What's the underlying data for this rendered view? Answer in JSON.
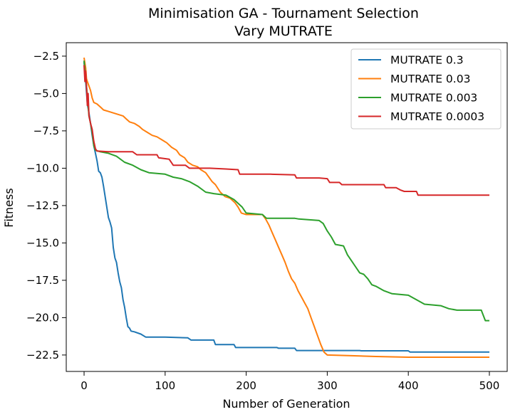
{
  "chart_data": {
    "type": "line",
    "title": "Minimisation GA - Tournament Selection",
    "subtitle": "Vary MUTRATE",
    "xlabel": "Number of Generation",
    "ylabel": "Fitness",
    "xlim": [
      -22,
      522
    ],
    "ylim": [
      -23.6,
      -1.6
    ],
    "xticks": [
      0,
      100,
      200,
      300,
      400,
      500
    ],
    "yticks": [
      -2.5,
      -5.0,
      -7.5,
      -10.0,
      -12.5,
      -15.0,
      -17.5,
      -20.0,
      -22.5
    ],
    "xtick_labels": [
      "0",
      "100",
      "200",
      "300",
      "400",
      "500"
    ],
    "ytick_labels": [
      "−2.5",
      "−5.0",
      "−7.5",
      "−10.0",
      "−12.5",
      "−15.0",
      "−17.5",
      "−20.0",
      "−22.5"
    ],
    "grid": false,
    "legend_position": "top-right",
    "series": [
      {
        "name": "MUTRATE 0.3",
        "color": "#1f77b4",
        "points": [
          [
            0,
            -2.9
          ],
          [
            2,
            -4.2
          ],
          [
            4,
            -5.7
          ],
          [
            6,
            -6.3
          ],
          [
            8,
            -7.0
          ],
          [
            10,
            -7.8
          ],
          [
            12,
            -8.5
          ],
          [
            14,
            -9.0
          ],
          [
            16,
            -9.5
          ],
          [
            18,
            -10.2
          ],
          [
            20,
            -10.3
          ],
          [
            22,
            -10.6
          ],
          [
            24,
            -11.2
          ],
          [
            26,
            -11.9
          ],
          [
            28,
            -12.6
          ],
          [
            30,
            -13.3
          ],
          [
            32,
            -13.6
          ],
          [
            34,
            -14.0
          ],
          [
            36,
            -15.3
          ],
          [
            38,
            -16.0
          ],
          [
            40,
            -16.3
          ],
          [
            42,
            -17.0
          ],
          [
            44,
            -17.6
          ],
          [
            46,
            -18.0
          ],
          [
            48,
            -18.8
          ],
          [
            50,
            -19.3
          ],
          [
            52,
            -20.0
          ],
          [
            54,
            -20.6
          ],
          [
            56,
            -20.7
          ],
          [
            58,
            -20.9
          ],
          [
            62,
            -20.95
          ],
          [
            70,
            -21.1
          ],
          [
            76,
            -21.3
          ],
          [
            100,
            -21.3
          ],
          [
            128,
            -21.35
          ],
          [
            132,
            -21.5
          ],
          [
            160,
            -21.5
          ],
          [
            162,
            -21.8
          ],
          [
            185,
            -21.8
          ],
          [
            187,
            -22.0
          ],
          [
            238,
            -22.0
          ],
          [
            240,
            -22.05
          ],
          [
            260,
            -22.05
          ],
          [
            262,
            -22.2
          ],
          [
            340,
            -22.2
          ],
          [
            342,
            -22.22
          ],
          [
            400,
            -22.22
          ],
          [
            402,
            -22.3
          ],
          [
            500,
            -22.3
          ]
        ]
      },
      {
        "name": "MUTRATE 0.03",
        "color": "#ff7f0e",
        "points": [
          [
            0,
            -2.6
          ],
          [
            2,
            -3.3
          ],
          [
            3,
            -4.0
          ],
          [
            4,
            -4.2
          ],
          [
            6,
            -4.5
          ],
          [
            8,
            -4.8
          ],
          [
            10,
            -5.3
          ],
          [
            12,
            -5.6
          ],
          [
            16,
            -5.7
          ],
          [
            20,
            -5.9
          ],
          [
            24,
            -6.1
          ],
          [
            30,
            -6.2
          ],
          [
            36,
            -6.3
          ],
          [
            42,
            -6.4
          ],
          [
            48,
            -6.5
          ],
          [
            52,
            -6.7
          ],
          [
            56,
            -6.9
          ],
          [
            62,
            -7.0
          ],
          [
            68,
            -7.2
          ],
          [
            72,
            -7.4
          ],
          [
            78,
            -7.6
          ],
          [
            84,
            -7.8
          ],
          [
            90,
            -7.9
          ],
          [
            96,
            -8.1
          ],
          [
            102,
            -8.3
          ],
          [
            108,
            -8.6
          ],
          [
            114,
            -8.8
          ],
          [
            118,
            -9.1
          ],
          [
            124,
            -9.3
          ],
          [
            128,
            -9.6
          ],
          [
            134,
            -9.8
          ],
          [
            140,
            -9.9
          ],
          [
            144,
            -10.1
          ],
          [
            150,
            -10.3
          ],
          [
            154,
            -10.6
          ],
          [
            158,
            -10.9
          ],
          [
            162,
            -11.1
          ],
          [
            168,
            -11.6
          ],
          [
            174,
            -11.9
          ],
          [
            180,
            -12.0
          ],
          [
            186,
            -12.3
          ],
          [
            190,
            -12.6
          ],
          [
            194,
            -13.0
          ],
          [
            200,
            -13.1
          ],
          [
            220,
            -13.1
          ],
          [
            224,
            -13.4
          ],
          [
            228,
            -13.8
          ],
          [
            232,
            -14.3
          ],
          [
            236,
            -14.8
          ],
          [
            240,
            -15.3
          ],
          [
            244,
            -15.8
          ],
          [
            248,
            -16.3
          ],
          [
            252,
            -16.9
          ],
          [
            256,
            -17.4
          ],
          [
            260,
            -17.7
          ],
          [
            264,
            -18.2
          ],
          [
            268,
            -18.6
          ],
          [
            272,
            -19.0
          ],
          [
            276,
            -19.4
          ],
          [
            280,
            -20.0
          ],
          [
            284,
            -20.6
          ],
          [
            288,
            -21.2
          ],
          [
            292,
            -21.8
          ],
          [
            296,
            -22.3
          ],
          [
            300,
            -22.5
          ],
          [
            330,
            -22.55
          ],
          [
            360,
            -22.6
          ],
          [
            400,
            -22.65
          ],
          [
            500,
            -22.65
          ]
        ]
      },
      {
        "name": "MUTRATE 0.003",
        "color": "#2ca02c",
        "points": [
          [
            0,
            -2.8
          ],
          [
            2,
            -4.0
          ],
          [
            3,
            -4.5
          ],
          [
            4,
            -5.2
          ],
          [
            6,
            -6.5
          ],
          [
            8,
            -7.0
          ],
          [
            10,
            -7.6
          ],
          [
            12,
            -8.5
          ],
          [
            14,
            -8.8
          ],
          [
            20,
            -8.9
          ],
          [
            30,
            -9.0
          ],
          [
            40,
            -9.2
          ],
          [
            50,
            -9.6
          ],
          [
            60,
            -9.8
          ],
          [
            70,
            -10.1
          ],
          [
            80,
            -10.3
          ],
          [
            100,
            -10.4
          ],
          [
            110,
            -10.6
          ],
          [
            120,
            -10.7
          ],
          [
            130,
            -10.9
          ],
          [
            140,
            -11.2
          ],
          [
            150,
            -11.6
          ],
          [
            160,
            -11.7
          ],
          [
            175,
            -11.8
          ],
          [
            185,
            -12.1
          ],
          [
            195,
            -12.6
          ],
          [
            200,
            -13.0
          ],
          [
            220,
            -13.1
          ],
          [
            225,
            -13.35
          ],
          [
            260,
            -13.35
          ],
          [
            265,
            -13.4
          ],
          [
            290,
            -13.5
          ],
          [
            295,
            -13.7
          ],
          [
            300,
            -14.2
          ],
          [
            305,
            -14.6
          ],
          [
            310,
            -15.1
          ],
          [
            320,
            -15.2
          ],
          [
            325,
            -15.8
          ],
          [
            330,
            -16.2
          ],
          [
            335,
            -16.6
          ],
          [
            340,
            -17.0
          ],
          [
            345,
            -17.1
          ],
          [
            350,
            -17.4
          ],
          [
            355,
            -17.8
          ],
          [
            360,
            -17.9
          ],
          [
            370,
            -18.2
          ],
          [
            380,
            -18.4
          ],
          [
            400,
            -18.5
          ],
          [
            420,
            -19.1
          ],
          [
            440,
            -19.2
          ],
          [
            450,
            -19.4
          ],
          [
            460,
            -19.5
          ],
          [
            490,
            -19.5
          ],
          [
            495,
            -20.2
          ],
          [
            500,
            -20.2
          ]
        ]
      },
      {
        "name": "MUTRATE 0.0003",
        "color": "#d62728",
        "points": [
          [
            0,
            -3.1
          ],
          [
            1,
            -4.2
          ],
          [
            2,
            -3.5
          ],
          [
            3,
            -4.5
          ],
          [
            4,
            -5.8
          ],
          [
            5,
            -5.0
          ],
          [
            6,
            -6.5
          ],
          [
            8,
            -7.0
          ],
          [
            10,
            -7.4
          ],
          [
            12,
            -8.2
          ],
          [
            14,
            -8.7
          ],
          [
            16,
            -8.85
          ],
          [
            30,
            -8.9
          ],
          [
            60,
            -8.9
          ],
          [
            65,
            -9.1
          ],
          [
            90,
            -9.1
          ],
          [
            92,
            -9.3
          ],
          [
            105,
            -9.4
          ],
          [
            110,
            -9.8
          ],
          [
            125,
            -9.8
          ],
          [
            130,
            -10.0
          ],
          [
            155,
            -10.0
          ],
          [
            175,
            -10.05
          ],
          [
            190,
            -10.1
          ],
          [
            192,
            -10.4
          ],
          [
            230,
            -10.4
          ],
          [
            260,
            -10.45
          ],
          [
            262,
            -10.65
          ],
          [
            290,
            -10.65
          ],
          [
            300,
            -10.7
          ],
          [
            303,
            -10.95
          ],
          [
            315,
            -10.95
          ],
          [
            318,
            -11.1
          ],
          [
            370,
            -11.1
          ],
          [
            372,
            -11.3
          ],
          [
            385,
            -11.3
          ],
          [
            390,
            -11.45
          ],
          [
            395,
            -11.55
          ],
          [
            410,
            -11.55
          ],
          [
            412,
            -11.8
          ],
          [
            500,
            -11.8
          ]
        ]
      }
    ]
  }
}
